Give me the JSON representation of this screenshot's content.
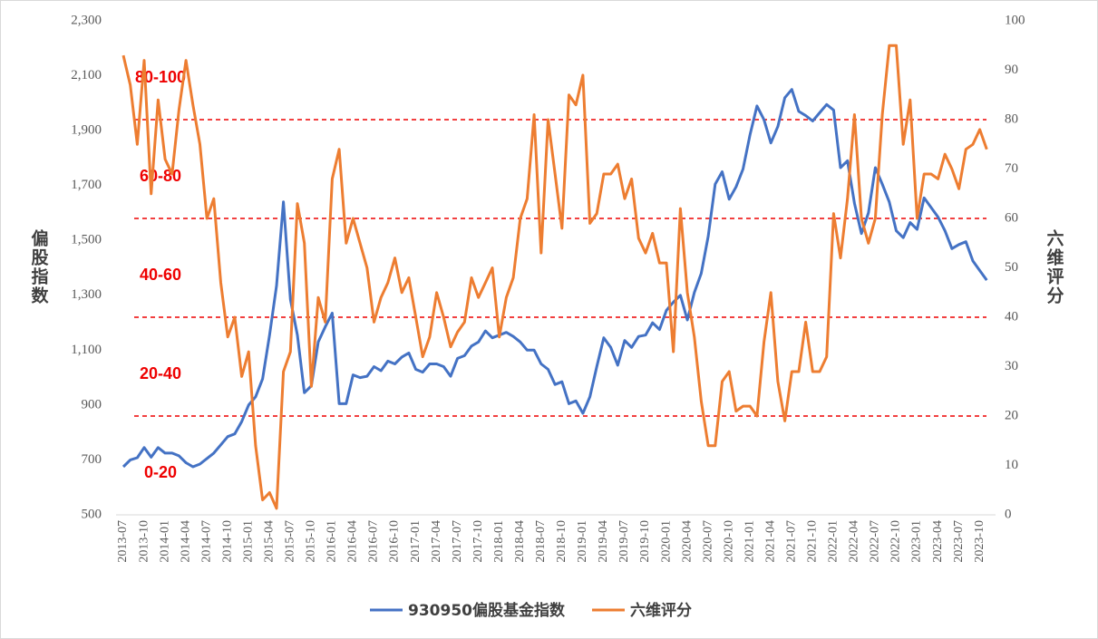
{
  "chart_data": {
    "type": "line",
    "y_label": "偏股指数",
    "y2_label": "六维评分",
    "categories": [
      "2013-07",
      null,
      null,
      "2013-10",
      null,
      null,
      "2014-01",
      null,
      null,
      "2014-04",
      null,
      null,
      "2014-07",
      null,
      null,
      "2014-10",
      null,
      null,
      "2015-01",
      null,
      null,
      "2015-04",
      null,
      null,
      "2015-07",
      null,
      null,
      "2015-10",
      null,
      null,
      "2016-01",
      null,
      null,
      "2016-04",
      null,
      null,
      "2016-07",
      null,
      null,
      "2016-10",
      null,
      null,
      "2017-01",
      null,
      null,
      "2017-04",
      null,
      null,
      "2017-07",
      null,
      null,
      "2017-10",
      null,
      null,
      "2018-01",
      null,
      null,
      "2018-04",
      null,
      null,
      "2018-07",
      null,
      null,
      "2018-10",
      null,
      null,
      "2019-01",
      null,
      null,
      "2019-04",
      null,
      null,
      "2019-07",
      null,
      null,
      "2019-10",
      null,
      null,
      "2020-01",
      null,
      null,
      "2020-04",
      null,
      null,
      "2020-07",
      null,
      null,
      "2020-10",
      null,
      null,
      "2021-01",
      null,
      null,
      "2021-04",
      null,
      null,
      "2021-07",
      null,
      null,
      "2021-10",
      null,
      null,
      "2022-01",
      null,
      null,
      "2022-04",
      null,
      null,
      "2022-07",
      null,
      null,
      "2022-10",
      null,
      null,
      "2023-01",
      null,
      null,
      "2023-04",
      null,
      null,
      "2023-07",
      null,
      null,
      "2023-10",
      null
    ],
    "series": [
      {
        "name": "930950偏股基金指数",
        "color": "#4472c4",
        "axis": "y",
        "values": [
          675,
          700,
          708,
          745,
          710,
          745,
          725,
          725,
          715,
          690,
          675,
          685,
          705,
          725,
          755,
          785,
          795,
          840,
          900,
          930,
          995,
          1155,
          1335,
          1640,
          1285,
          1155,
          945,
          970,
          1130,
          1185,
          1235,
          905,
          905,
          1010,
          1000,
          1005,
          1040,
          1025,
          1060,
          1050,
          1075,
          1090,
          1030,
          1020,
          1050,
          1050,
          1040,
          1005,
          1070,
          1080,
          1115,
          1130,
          1170,
          1145,
          1155,
          1165,
          1150,
          1130,
          1100,
          1100,
          1050,
          1030,
          975,
          985,
          905,
          915,
          870,
          930,
          1040,
          1145,
          1110,
          1045,
          1135,
          1110,
          1150,
          1155,
          1200,
          1175,
          1245,
          1275,
          1300,
          1210,
          1310,
          1380,
          1515,
          1705,
          1750,
          1650,
          1695,
          1760,
          1885,
          1990,
          1940,
          1855,
          1915,
          2020,
          2050,
          1970,
          1955,
          1935,
          1965,
          1995,
          1975,
          1765,
          1790,
          1635,
          1525,
          1600,
          1765,
          1705,
          1640,
          1535,
          1510,
          1565,
          1540,
          1655,
          1620,
          1585,
          1535,
          1470,
          1485,
          1495,
          1425,
          1390,
          1355
        ]
      },
      {
        "name": "六维评分",
        "color": "#ed7d31",
        "axis": "y2",
        "values": [
          93,
          87,
          75,
          92,
          65,
          84,
          72,
          69,
          82,
          92,
          83,
          75,
          60,
          64,
          47,
          36,
          40,
          28,
          33,
          14,
          3,
          4.5,
          1.3,
          29,
          33,
          63,
          55,
          26,
          44,
          39,
          68,
          74,
          55,
          60,
          55,
          50,
          39,
          44,
          47,
          52,
          45,
          48,
          40,
          32,
          36,
          45,
          40,
          34,
          37,
          39,
          48,
          44,
          47,
          50,
          36,
          44,
          48,
          60,
          64,
          81,
          53,
          80,
          69,
          58,
          85,
          83,
          89,
          59,
          61,
          69,
          69,
          71,
          64,
          68,
          56,
          53,
          57,
          51,
          51,
          33,
          62,
          45,
          36,
          23,
          14,
          14,
          27,
          29,
          21,
          22,
          22,
          20,
          35,
          45,
          27,
          19,
          29,
          29,
          39,
          29,
          29,
          32,
          61,
          52,
          64,
          81,
          60,
          55,
          60,
          81,
          95,
          95,
          75,
          84,
          60,
          69,
          69,
          68,
          73,
          70,
          66,
          74,
          75,
          78,
          74
        ]
      }
    ],
    "ylim": [
      500,
      2300
    ],
    "yticks": [
      500,
      700,
      900,
      {
        "value": 1100,
        "label": "1,100"
      },
      {
        "value": 1300,
        "label": "1,300"
      },
      {
        "value": 1500,
        "label": "1,500"
      },
      {
        "value": 1700,
        "label": "1,700"
      },
      {
        "value": 1900,
        "label": "1,900"
      },
      {
        "value": 2100,
        "label": "2,100"
      },
      {
        "value": 2300,
        "label": "2,300"
      }
    ],
    "y2lim": [
      0,
      100
    ],
    "y2ticks": [
      0,
      10,
      20,
      30,
      40,
      50,
      60,
      70,
      80,
      90,
      100
    ],
    "zones": [
      {
        "label": "0-20",
        "from": 0,
        "to": 20
      },
      {
        "label": "20-40",
        "from": 20,
        "to": 40
      },
      {
        "label": "40-60",
        "from": 40,
        "to": 60
      },
      {
        "label": "60-80",
        "from": 60,
        "to": 80
      },
      {
        "label": "80-100",
        "from": 80,
        "to": 100
      }
    ],
    "zone_color": "#ee0000",
    "legend": "bottom"
  }
}
